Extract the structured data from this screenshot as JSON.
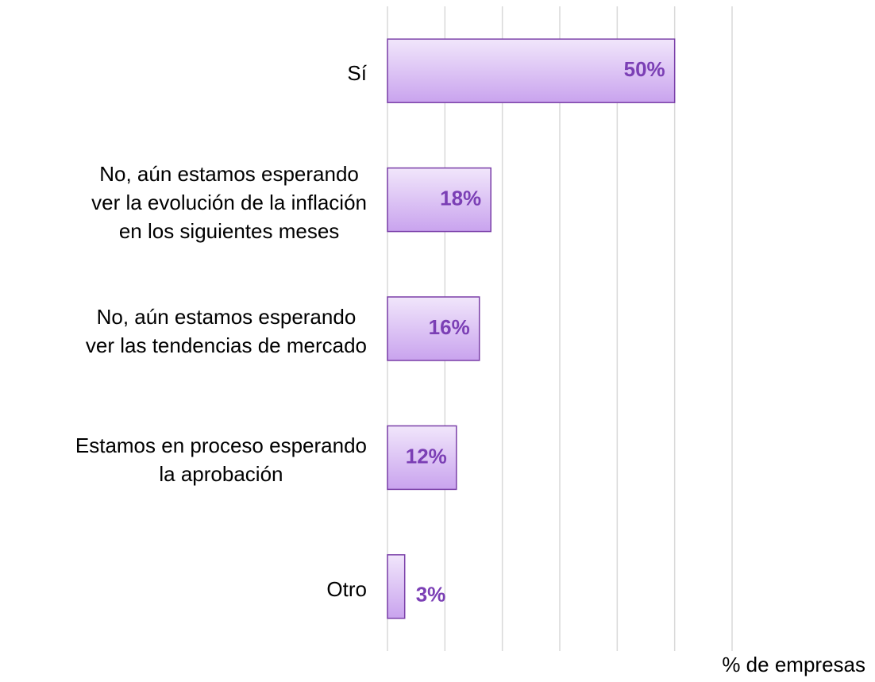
{
  "chart_data": {
    "type": "barh",
    "categories": [
      "Sí",
      "No, aún estamos esperando\nver la evolución de la inflación\nen los siguientes meses",
      "No, aún estamos esperando\nver las tendencias de mercado",
      "Estamos en proceso esperando\nla aprobación",
      "Otro"
    ],
    "values": [
      50,
      18,
      16,
      12,
      3
    ],
    "value_labels": [
      "50%",
      "18%",
      "16%",
      "12%",
      "3%"
    ],
    "color": "#d8bdf3",
    "xlim": [
      0,
      60
    ],
    "xticks": [
      0,
      10,
      20,
      30,
      40,
      50,
      60
    ],
    "grid": true,
    "x_label": "% de empresas"
  }
}
